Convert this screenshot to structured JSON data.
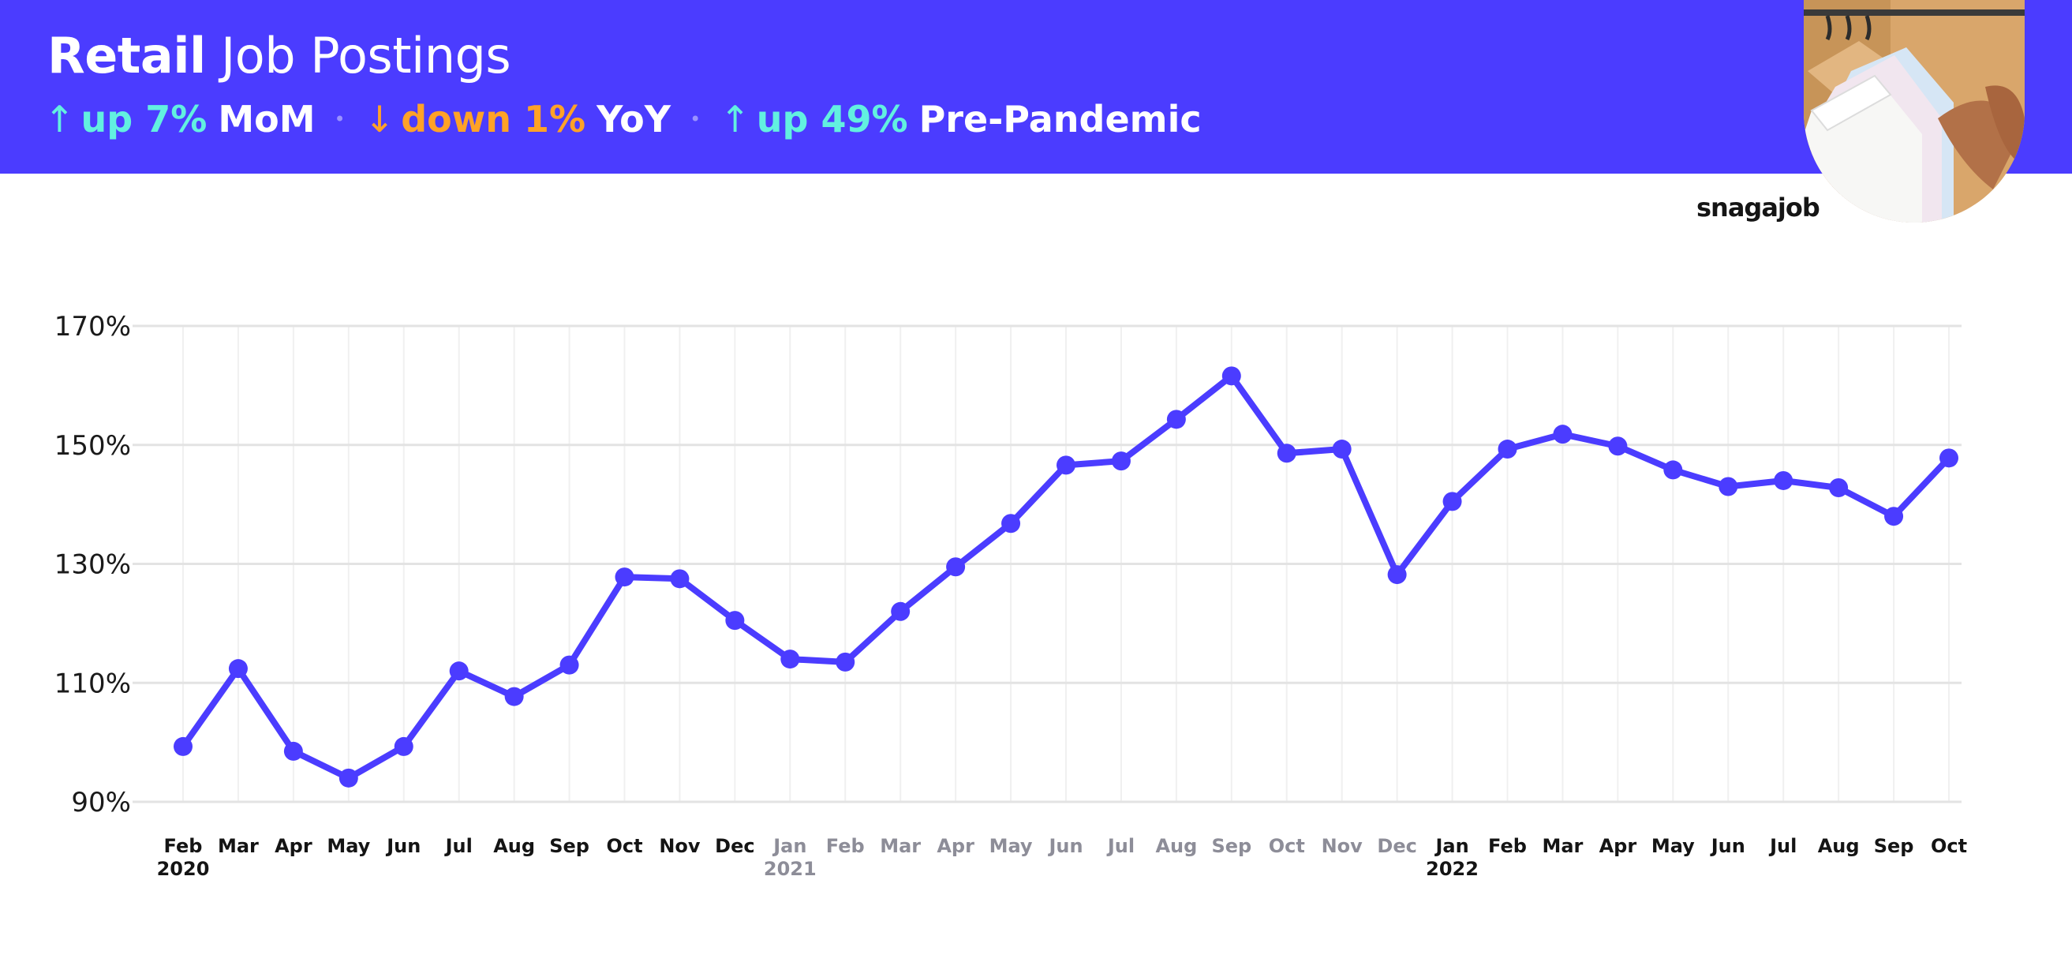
{
  "header": {
    "title_bold": "Retail",
    "title_rest": "Job Postings",
    "stats": [
      {
        "arrow": "↑",
        "direction": "up",
        "value": "up 7%",
        "label": "MoM"
      },
      {
        "arrow": "↓",
        "direction": "down",
        "value": "down 1%",
        "label": "YoY"
      },
      {
        "arrow": "↑",
        "direction": "up",
        "value": "up 49%",
        "label": "Pre-Pandemic"
      }
    ],
    "separator": "•"
  },
  "brand": "snagajob",
  "colors": {
    "header_bg": "#4b3cff",
    "line": "#4b3cff",
    "up": "#62f0e0",
    "down": "#ffa227"
  },
  "chart_data": {
    "type": "line",
    "title": "Retail Job Postings",
    "xlabel": "",
    "ylabel": "",
    "ylim": [
      90,
      170
    ],
    "yticks": [
      90,
      110,
      130,
      150,
      170
    ],
    "ytick_labels": [
      "90%",
      "110%",
      "130%",
      "150%",
      "170%"
    ],
    "grid": true,
    "categories": [
      "Feb",
      "Mar",
      "Apr",
      "May",
      "Jun",
      "Jul",
      "Aug",
      "Sep",
      "Oct",
      "Nov",
      "Dec",
      "Jan",
      "Feb",
      "Mar",
      "Apr",
      "May",
      "Jun",
      "Jul",
      "Aug",
      "Sep",
      "Oct",
      "Nov",
      "Dec",
      "Jan",
      "Feb",
      "Mar",
      "Apr",
      "May",
      "Jun",
      "Jul",
      "Aug",
      "Sep",
      "Oct"
    ],
    "year_labels": [
      {
        "index": 0,
        "label": "2020"
      },
      {
        "index": 11,
        "label": "2021"
      },
      {
        "index": 23,
        "label": "2022"
      }
    ],
    "muted_range": [
      11,
      22
    ],
    "series": [
      {
        "name": "Retail Job Postings",
        "values": [
          99.3,
          112.4,
          98.5,
          94.0,
          99.3,
          112.0,
          107.7,
          113.0,
          127.8,
          127.5,
          120.5,
          114.0,
          113.5,
          122.0,
          129.5,
          136.8,
          146.6,
          147.3,
          154.3,
          161.6,
          148.6,
          149.3,
          128.2,
          140.5,
          149.3,
          151.8,
          149.8,
          145.8,
          143.0,
          144.0,
          142.8,
          138.0,
          147.8
        ]
      }
    ]
  }
}
